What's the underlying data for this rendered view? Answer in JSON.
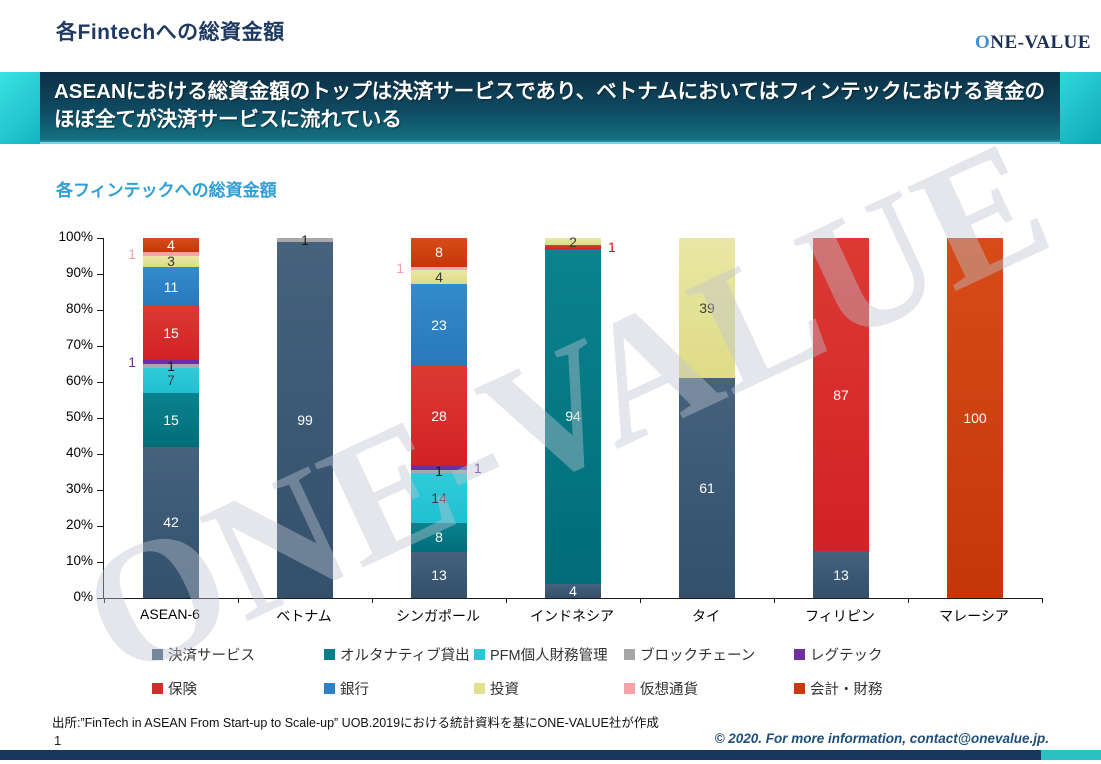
{
  "header": {
    "title": "各Fintechへの総資金額",
    "logo_first_letter": "O",
    "logo_rest": "NE-VALUE"
  },
  "banner": {
    "message": "ASEANにおける総資金額のトップは決済サービスであり、ベトナムにおいてはフィンテックにおける資金のほぼ全てが決済サービスに流れている"
  },
  "watermark": {
    "text": "ONE-VALUE"
  },
  "chart_data": {
    "type": "bar",
    "subtype": "stacked-100-percent",
    "title": "各フィンテックへの総資金額",
    "title_color": "#2E9FD8",
    "grid": false,
    "legend_position": "bottom",
    "ylim": [
      0,
      100
    ],
    "y_ticks": [
      "0%",
      "10%",
      "20%",
      "30%",
      "40%",
      "50%",
      "60%",
      "70%",
      "80%",
      "90%",
      "100%"
    ],
    "categories": [
      "ASEAN-6",
      "ベトナム",
      "シンガポール",
      "インドネシア",
      "タイ",
      "フィリピン",
      "マレーシア"
    ],
    "series": [
      {
        "name": "決済サービス",
        "color": "#3E5C76"
      },
      {
        "name": "オルタナティブ貸出",
        "color": "#057E8B"
      },
      {
        "name": "PFM個人財務管理",
        "color": "#2BC5D6"
      },
      {
        "name": "ブロックチェーン",
        "color": "#A6A6A6"
      },
      {
        "name": "レグテック",
        "color": "#7030A0"
      },
      {
        "name": "保険",
        "color": "#D62B2B"
      },
      {
        "name": "銀行",
        "color": "#2E81C4"
      },
      {
        "name": "投資",
        "color": "#E2E08F"
      },
      {
        "name": "仮想通貨",
        "color": "#F5A3A8"
      },
      {
        "name": "会計・財務",
        "color": "#C9390B"
      }
    ],
    "bars": [
      {
        "category": "ASEAN-6",
        "segments": [
          {
            "series": 0,
            "value": 42,
            "label_pos": "in"
          },
          {
            "series": 1,
            "value": 15,
            "label_pos": "in"
          },
          {
            "series": 2,
            "value": 7,
            "label_pos": "in",
            "label_color": "#3c3c3c"
          },
          {
            "series": 3,
            "value": 1,
            "label_pos": "in",
            "label_color": "#1a1a1a"
          },
          {
            "series": 4,
            "value": 1,
            "label_pos": "left",
            "label_color": "#7030A0"
          },
          {
            "series": 5,
            "value": 15,
            "label_pos": "in"
          },
          {
            "series": 6,
            "value": 11,
            "label_pos": "in"
          },
          {
            "series": 7,
            "value": 3,
            "label_pos": "in",
            "label_color": "#3c3c3c"
          },
          {
            "series": 8,
            "value": 1,
            "label_pos": "left",
            "label_color": "#F2A0A8"
          },
          {
            "series": 9,
            "value": 4,
            "label_pos": "in"
          }
        ]
      },
      {
        "category": "ベトナム",
        "segments": [
          {
            "series": 0,
            "value": 99,
            "label_pos": "in"
          },
          {
            "series": 3,
            "value": 1,
            "label_pos": "in",
            "label_color": "#1a1a1a"
          }
        ]
      },
      {
        "category": "シンガポール",
        "segments": [
          {
            "series": 0,
            "value": 13,
            "label_pos": "in"
          },
          {
            "series": 1,
            "value": 8,
            "label_pos": "in"
          },
          {
            "series": 2,
            "value": 14,
            "label_pos": "in",
            "label_color": "#3c3c3c"
          },
          {
            "series": 3,
            "value": 1,
            "label_pos": "in",
            "label_color": "#1a1a1a"
          },
          {
            "series": 4,
            "value": 1,
            "label_pos": "right",
            "label_color": "#7030A0"
          },
          {
            "series": 5,
            "value": 28,
            "label_pos": "in"
          },
          {
            "series": 6,
            "value": 23,
            "label_pos": "in"
          },
          {
            "series": 7,
            "value": 4,
            "label_pos": "in",
            "label_color": "#3c3c3c"
          },
          {
            "series": 8,
            "value": 1,
            "label_pos": "left",
            "label_color": "#F2A0A8"
          },
          {
            "series": 9,
            "value": 8,
            "label_pos": "in"
          }
        ]
      },
      {
        "category": "インドネシア",
        "segments": [
          {
            "series": 0,
            "value": 4,
            "label_pos": "in"
          },
          {
            "series": 1,
            "value": 94,
            "label_pos": "in"
          },
          {
            "series": 5,
            "value": 1,
            "label_pos": "right",
            "label_color": "#FF0000"
          },
          {
            "series": 7,
            "value": 2,
            "label_pos": "in",
            "label_color": "#3c3c3c"
          }
        ]
      },
      {
        "category": "タイ",
        "segments": [
          {
            "series": 0,
            "value": 61,
            "label_pos": "in"
          },
          {
            "series": 7,
            "value": 39,
            "label_pos": "in",
            "label_color": "#3c3c3c"
          }
        ]
      },
      {
        "category": "フィリピン",
        "segments": [
          {
            "series": 0,
            "value": 13,
            "label_pos": "in"
          },
          {
            "series": 5,
            "value": 87,
            "label_pos": "in"
          }
        ]
      },
      {
        "category": "マレーシア",
        "segments": [
          {
            "series": 9,
            "value": 100,
            "label_pos": "in"
          }
        ]
      }
    ]
  },
  "source": {
    "text": "出所:”FinTech in ASEAN From Start-up to Scale-up” UOB.2019における統計資料を基にONE-VALUE社が作成"
  },
  "footer": {
    "page_number": "1",
    "copyright": "© 2020. For more information, contact@onevalue.jp."
  }
}
